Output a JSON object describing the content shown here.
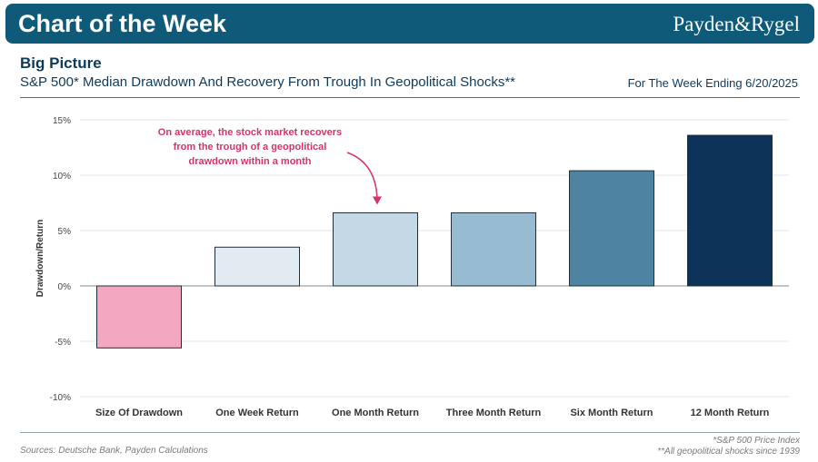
{
  "header": {
    "title": "Chart of the Week",
    "brand": "Payden&Rygel"
  },
  "section": {
    "title": "Big Picture",
    "subtitle": "S&P 500* Median Drawdown And Recovery From Trough In Geopolitical Shocks**",
    "week": "For The Week Ending 6/20/2025"
  },
  "chart_data": {
    "type": "bar",
    "title": "S&P 500* Median Drawdown And Recovery From Trough In Geopolitical Shocks**",
    "xlabel": "",
    "ylabel": "Drawdown/Return",
    "categories": [
      "Size Of Drawdown",
      "One Week Return",
      "One Month Return",
      "Three Month Return",
      "Six Month Return",
      "12 Month Return"
    ],
    "values": [
      -5.6,
      3.5,
      6.6,
      6.6,
      10.4,
      13.6
    ],
    "colors": [
      "#f4a7c1",
      "#e2ebf2",
      "#c5d8e5",
      "#97bbd0",
      "#4e84a2",
      "#0d3358"
    ],
    "ylim": [
      -10,
      15
    ],
    "yticks": [
      -10,
      -5,
      0,
      5,
      10,
      15
    ],
    "ytick_labels": [
      "-10%",
      "-5%",
      "0%",
      "5%",
      "10%",
      "15%"
    ],
    "grid": true,
    "annotation": {
      "lines": [
        "On average, the stock market recovers",
        "from the trough of a geopolitical",
        "drawdown within a month"
      ],
      "color": "#d6336c",
      "target_category": "One Month Return"
    }
  },
  "footer": {
    "source": "Sources: Deutsche Bank, Payden Calculations",
    "note1": "*S&P 500 Price Index",
    "note2": "**All geopolitical shocks since 1939"
  }
}
